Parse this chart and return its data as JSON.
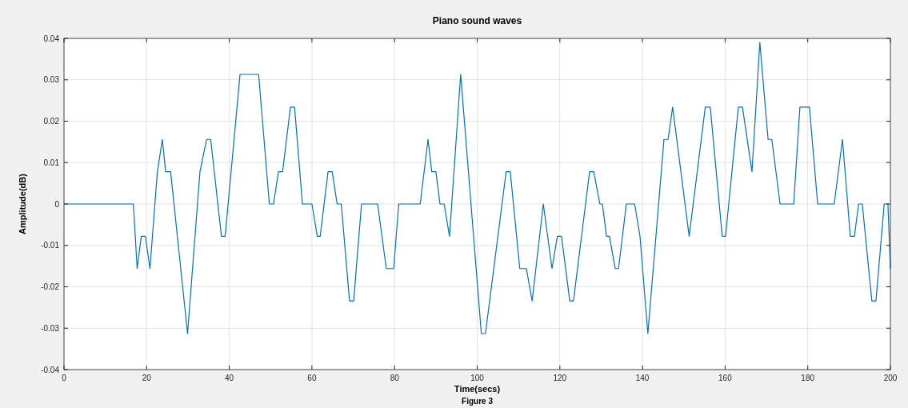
{
  "chart_data": {
    "type": "line",
    "title": "Piano sound waves",
    "xlabel": "Time(secs)",
    "ylabel": "Amplitude(dB)",
    "annotations": [
      "Figure 3"
    ],
    "xlim": [
      0,
      200
    ],
    "xticks": [
      0,
      20,
      40,
      60,
      80,
      100,
      120,
      140,
      160,
      180,
      200
    ],
    "ylim": [
      -0.04,
      0.04
    ],
    "yticks": [
      -0.04,
      -0.03,
      -0.02,
      -0.01,
      0,
      0.01,
      0.02,
      0.03,
      0.04
    ],
    "grid": true,
    "line_style": "solid",
    "series": [
      {
        "color": "#0072bd",
        "x": [
          0,
          16.8,
          17.7,
          18.7,
          19.7,
          20.8,
          22.6,
          23.8,
          24.6,
          25.8,
          29.9,
          32.9,
          34.5,
          35.5,
          38.1,
          39.0,
          42.6,
          47.1,
          49.7,
          50.7,
          51.9,
          52.9,
          54.8,
          55.8,
          57.7,
          60.0,
          61.3,
          62.0,
          63.9,
          64.9,
          66.1,
          67.1,
          69.1,
          70.1,
          72.0,
          75.9,
          78.0,
          79.8,
          81.0,
          86.2,
          88.1,
          89.0,
          90.0,
          91.0,
          92.0,
          93.3,
          96.0,
          101.0,
          102.0,
          107.0,
          108.0,
          110.3,
          111.9,
          113.3,
          116.0,
          118.1,
          119.4,
          120.4,
          122.4,
          123.3,
          127.2,
          128.2,
          129.7,
          130.3,
          131.3,
          132.0,
          133.4,
          134.2,
          136.1,
          138.1,
          139.4,
          141.3,
          145.2,
          146.2,
          147.3,
          151.3,
          155.2,
          156.4,
          159.3,
          160.1,
          163.2,
          164.2,
          166.5,
          168.4,
          170.4,
          171.3,
          173.3,
          176.6,
          178.1,
          180.4,
          182.4,
          186.4,
          188.4,
          190.3,
          191.3,
          192.3,
          193.2,
          195.5,
          196.5,
          198.5,
          199.4,
          200
        ],
        "values": [
          0,
          0,
          -0.0156,
          -0.0078,
          -0.0078,
          -0.0156,
          0.0078,
          0.0156,
          0.0078,
          0.0078,
          -0.0313,
          0.0078,
          0.0156,
          0.0156,
          -0.0078,
          -0.0078,
          0.0313,
          0.0313,
          0,
          0,
          0.0078,
          0.0078,
          0.0234,
          0.0234,
          0,
          0,
          -0.0078,
          -0.0078,
          0.0078,
          0.0078,
          0,
          0,
          -0.0234,
          -0.0234,
          0,
          0,
          -0.0156,
          -0.0156,
          0,
          0,
          0.0156,
          0.0078,
          0.0078,
          0,
          0,
          -0.0078,
          0.0313,
          -0.0313,
          -0.0313,
          0.0078,
          0.0078,
          -0.0156,
          -0.0156,
          -0.0234,
          0,
          -0.0156,
          -0.0078,
          -0.0078,
          -0.0234,
          -0.0234,
          0.0078,
          0.0078,
          0,
          0,
          -0.0078,
          -0.0078,
          -0.0156,
          -0.0156,
          0,
          0,
          -0.0078,
          -0.0313,
          0.0156,
          0.0156,
          0.0234,
          -0.0078,
          0.0234,
          0.0234,
          -0.0078,
          -0.0078,
          0.0234,
          0.0234,
          0.0078,
          0.039,
          0.0156,
          0.0156,
          0,
          0,
          0.0234,
          0.0234,
          0,
          0,
          0.0156,
          -0.0078,
          -0.0078,
          0,
          0,
          -0.0234,
          -0.0234,
          0,
          0,
          -0.0156
        ]
      }
    ]
  }
}
